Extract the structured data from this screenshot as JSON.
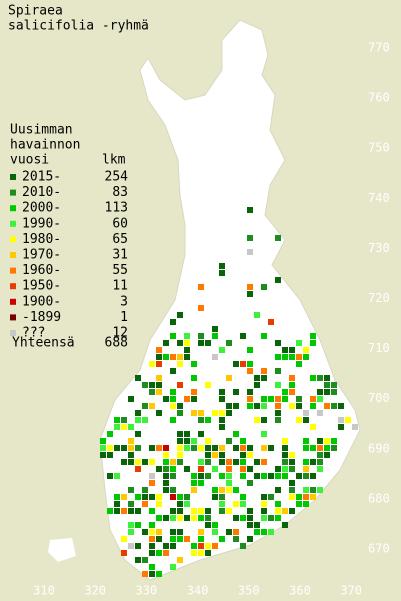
{
  "title": [
    "Spiraea",
    "salicifolia -ryhmä"
  ],
  "legend": {
    "heading": [
      "Uusimman",
      "havainnon",
      "vuosi"
    ],
    "count_heading": "lkm",
    "rows": [
      {
        "label": "2015-",
        "count": 254,
        "color": "#0a640a"
      },
      {
        "label": "2010-",
        "count": 83,
        "color": "#1e8c1e"
      },
      {
        "label": "2000-",
        "count": 113,
        "color": "#00c800"
      },
      {
        "label": "1990-",
        "count": 60,
        "color": "#3cf03c"
      },
      {
        "label": "1980-",
        "count": 65,
        "color": "#ffff00"
      },
      {
        "label": "1970-",
        "count": 31,
        "color": "#ffc800"
      },
      {
        "label": "1960-",
        "count": 55,
        "color": "#ff7800"
      },
      {
        "label": "1950-",
        "count": 11,
        "color": "#e63c00"
      },
      {
        "label": "1900-",
        "count": 3,
        "color": "#c80000"
      },
      {
        "label": "-1899",
        "count": 1,
        "color": "#780000"
      },
      {
        "label": "???",
        "count": 12,
        "color": "#c8c8c8"
      }
    ],
    "total_label": "Yhteensä",
    "total": 688
  },
  "axes": {
    "y_labels": [
      770,
      760,
      750,
      740,
      730,
      720,
      710,
      700,
      690,
      680,
      670
    ],
    "x_labels": [
      310,
      320,
      330,
      340,
      350,
      360,
      370
    ]
  }
}
